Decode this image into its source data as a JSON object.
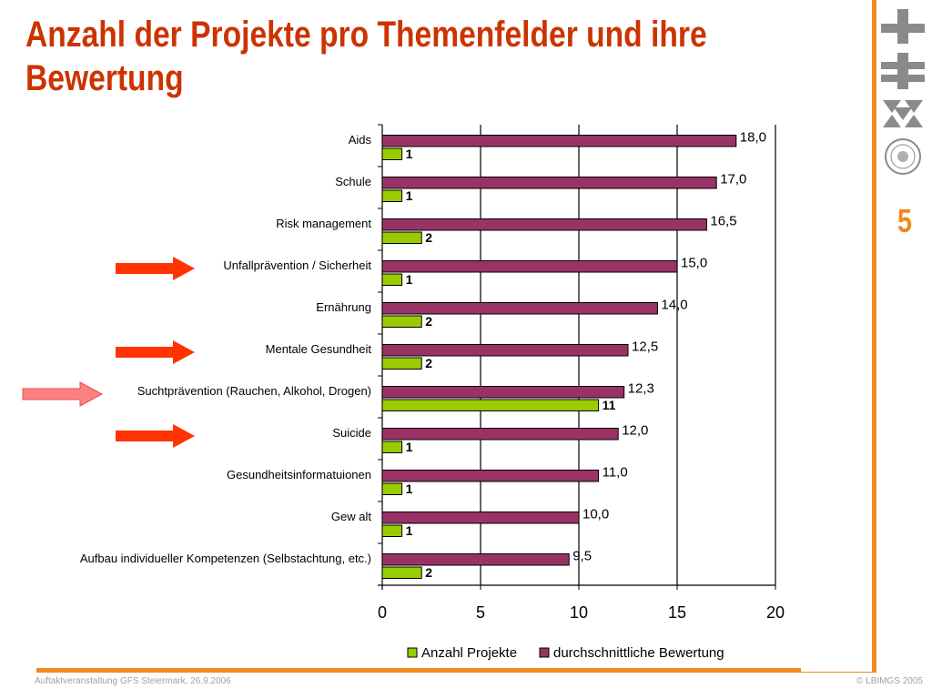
{
  "slide": {
    "title": "Anzahl der Projekte pro Themenfelder und ihre Bewertung",
    "page_number": "5",
    "footer_left": "Auftaktveranstaltung GFS Steiermark, 26.9.2006",
    "footer_right": "© LBIMGS 2005"
  },
  "colors": {
    "title": "#cc3300",
    "accent_orange": "#f08a1c",
    "series_count": "#99cc00",
    "series_rating": "#993366",
    "arrow_strong": "#ff3300",
    "arrow_light": "#ff8080"
  },
  "chart_data": {
    "type": "bar",
    "orientation": "horizontal",
    "categories": [
      "Aids",
      "Schule",
      "Risk management",
      "Unfallprävention / Sicherheit",
      "Ernährung",
      "Mentale Gesundheit",
      "Suchtprävention (Rauchen, Alkohol, Drogen)",
      "Suicide",
      "Gesundheitsinformatuionen",
      "Gew alt",
      "Aufbau individueller Kompetenzen (Selbstachtung, etc.)"
    ],
    "series": [
      {
        "name": "Anzahl Projekte",
        "values": [
          1,
          1,
          2,
          1,
          2,
          2,
          11,
          1,
          1,
          1,
          2
        ],
        "labels": [
          "1",
          "1",
          "2",
          "1",
          "2",
          "2",
          "11",
          "1",
          "1",
          "1",
          "2"
        ]
      },
      {
        "name": "durchschnittliche Bewertung",
        "values": [
          18.0,
          17.0,
          16.5,
          15.0,
          14.0,
          12.5,
          12.3,
          12.0,
          11.0,
          10.0,
          9.5
        ],
        "labels": [
          "18,0",
          "17,0",
          "16,5",
          "15,0",
          "14,0",
          "12,5",
          "12,3",
          "12,0",
          "11,0",
          "10,0",
          "9,5"
        ]
      }
    ],
    "xlim": [
      0,
      20
    ],
    "xticks": [
      0,
      5,
      10,
      15,
      20
    ],
    "xtick_labels": [
      "0",
      "5",
      "10",
      "15",
      "20"
    ],
    "grid": "vertical",
    "legend": "bottom",
    "highlighted_categories": [
      {
        "category": "Unfallprävention / Sicherheit",
        "arrow": "strong"
      },
      {
        "category": "Mentale Gesundheit",
        "arrow": "strong"
      },
      {
        "category": "Suchtprävention (Rauchen, Alkohol, Drogen)",
        "arrow": "light"
      },
      {
        "category": "Suicide",
        "arrow": "strong"
      }
    ]
  }
}
